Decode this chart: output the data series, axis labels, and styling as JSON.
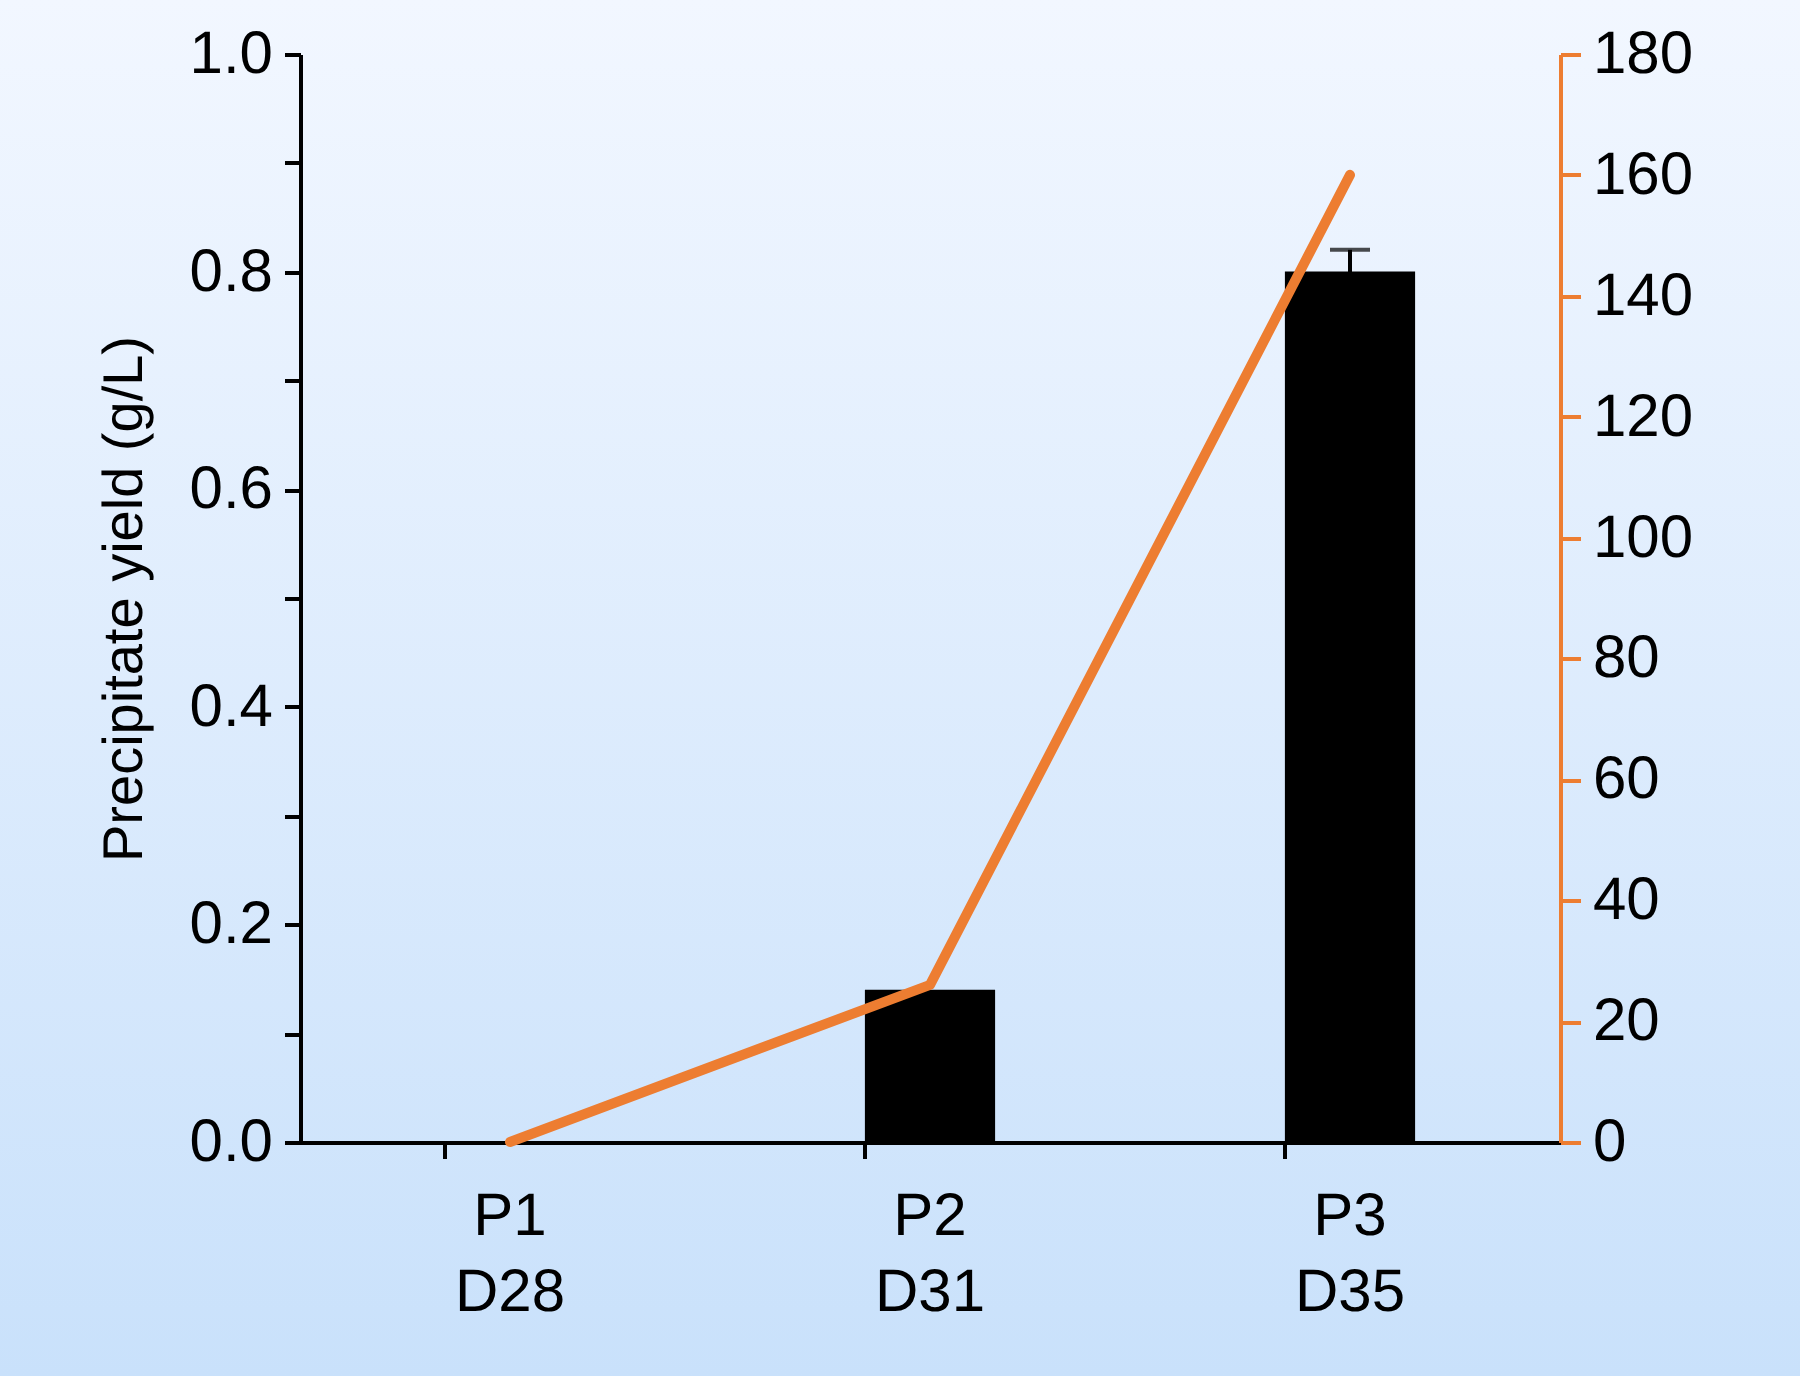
{
  "chart_data": {
    "type": "bar",
    "ylabel": "Precipitate yield (g/L)",
    "categories": [
      "P1\nD28",
      "P2\nD31",
      "P3\nD35"
    ],
    "series": [
      {
        "color": "#000000",
        "values": [
          0,
          0.14,
          0.8
        ],
        "errors": [
          null,
          null,
          0.02
        ]
      },
      {
        "type": "line",
        "axis": "y2",
        "color": "#ed7d31",
        "values": [
          0,
          26,
          160
        ]
      }
    ],
    "ylim": [
      0,
      1.0
    ],
    "yticks": [
      {
        "value": 0,
        "label": "0.0"
      },
      {
        "value": 0.1,
        "label": null
      },
      {
        "value": 0.2,
        "label": "0.2"
      },
      {
        "value": 0.3,
        "label": null
      },
      {
        "value": 0.4,
        "label": "0.4"
      },
      {
        "value": 0.5,
        "label": null
      },
      {
        "value": 0.6,
        "label": "0.6"
      },
      {
        "value": 0.7,
        "label": null
      },
      {
        "value": 0.8,
        "label": "0.8"
      },
      {
        "value": 0.9,
        "label": null
      },
      {
        "value": 1.0,
        "label": "1.0"
      }
    ],
    "y2lim": [
      0,
      180
    ],
    "y2ticks": [
      0,
      20,
      40,
      60,
      80,
      100,
      120,
      140,
      160,
      180
    ],
    "line_style": "solid"
  }
}
